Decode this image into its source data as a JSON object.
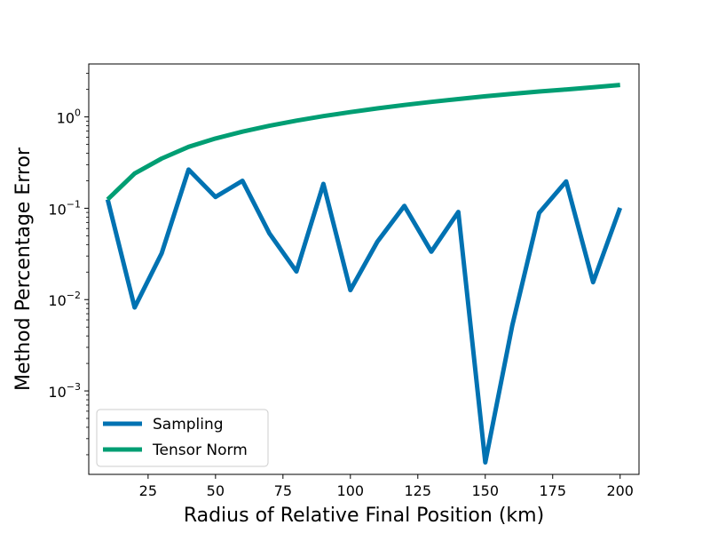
{
  "chart_data": {
    "type": "line",
    "xlabel": "Radius of Relative Final Position (km)",
    "ylabel": "Method Percentage Error",
    "yscale": "log",
    "xlim": [
      3,
      207
    ],
    "ylim": [
      0.000122,
      3.8
    ],
    "grid": false,
    "legend_position": "lower-left",
    "x_ticks": [
      25,
      50,
      75,
      100,
      125,
      150,
      175,
      200
    ],
    "y_ticks": [
      {
        "value": 0.001,
        "base": "10",
        "exponent": "−3"
      },
      {
        "value": 0.01,
        "base": "10",
        "exponent": "−2"
      },
      {
        "value": 0.1,
        "base": "10",
        "exponent": "−1"
      },
      {
        "value": 1,
        "base": "10",
        "exponent": "0"
      }
    ],
    "x": [
      10,
      20,
      30,
      40,
      50,
      60,
      70,
      80,
      90,
      100,
      110,
      120,
      130,
      140,
      150,
      160,
      170,
      180,
      190,
      200
    ],
    "series": [
      {
        "name": "Sampling",
        "color": "#0072b2",
        "values": [
          0.125,
          0.0082,
          0.032,
          0.265,
          0.133,
          0.2,
          0.053,
          0.0203,
          0.185,
          0.0127,
          0.043,
          0.106,
          0.0335,
          0.091,
          0.000165,
          0.0052,
          0.089,
          0.197,
          0.0155,
          0.101
        ]
      },
      {
        "name": "Tensor Norm",
        "color": "#009e73",
        "values": [
          0.125,
          0.24,
          0.35,
          0.47,
          0.58,
          0.69,
          0.8,
          0.91,
          1.02,
          1.13,
          1.24,
          1.35,
          1.46,
          1.57,
          1.68,
          1.79,
          1.9,
          2.0,
          2.11,
          2.24
        ]
      }
    ]
  }
}
